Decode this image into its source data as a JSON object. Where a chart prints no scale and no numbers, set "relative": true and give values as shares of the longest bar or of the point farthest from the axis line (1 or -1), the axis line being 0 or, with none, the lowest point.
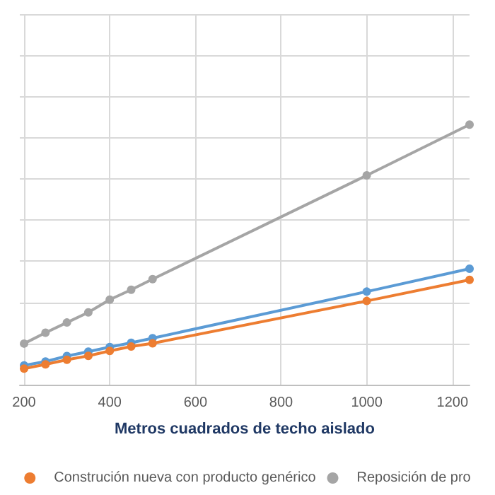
{
  "chart_data": {
    "type": "line",
    "xlabel": "Metros cuadrados de techo aislado",
    "x": [
      200,
      250,
      300,
      350,
      400,
      450,
      500,
      1000,
      1240
    ],
    "xlim": [
      190,
      1240
    ],
    "xticks": [
      200,
      400,
      600,
      800,
      1000,
      1200
    ],
    "relative": true,
    "grid": true,
    "legend": "bottom",
    "marker": "circle",
    "series": [
      {
        "color": "#5b9bd5",
        "values": [
          0.074,
          0.089,
          0.11,
          0.127,
          0.145,
          0.161,
          0.179,
          0.358,
          0.446
        ]
      },
      {
        "name": "Construción nueva con producto genérico",
        "color": "#ed7d31",
        "values": [
          0.062,
          0.078,
          0.096,
          0.111,
          0.13,
          0.147,
          0.159,
          0.322,
          0.403
        ]
      },
      {
        "name": "Reposición de pro",
        "color": "#a5a5a5",
        "values": [
          0.158,
          0.2,
          0.239,
          0.278,
          0.327,
          0.365,
          0.406,
          0.805,
          1
        ]
      }
    ]
  }
}
